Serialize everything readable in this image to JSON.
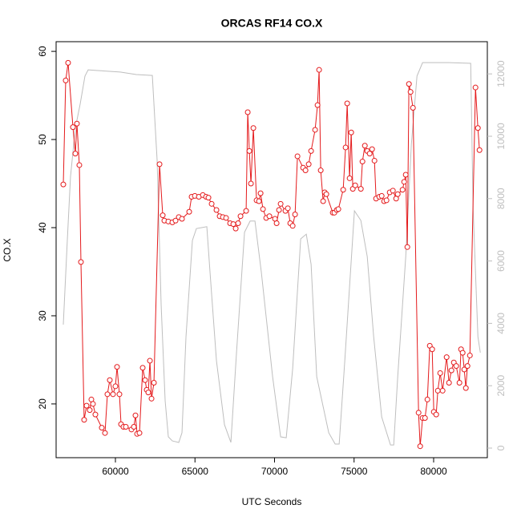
{
  "chart_data": {
    "type": "line",
    "title": "ORCAS RF14 CO.X",
    "x_label": "UTC Seconds",
    "y_label": "CO.X",
    "xlim": [
      56272,
      83375
    ],
    "xticks": [
      60000,
      65000,
      70000,
      75000,
      80000
    ],
    "ylim": [
      13.9,
      61.1
    ],
    "yticks": [
      20,
      30,
      40,
      50,
      60
    ],
    "y2lim": [
      -308,
      13033
    ],
    "y2ticks": [
      0,
      2000,
      4000,
      6000,
      8000,
      10000,
      12000
    ],
    "series": [
      {
        "color": "#e41a1c",
        "axis": "y",
        "markers": true,
        "x": [
          56724,
          56875,
          57026,
          57330,
          57480,
          57581,
          57732,
          57833,
          58034,
          58186,
          58387,
          58488,
          58589,
          58740,
          59143,
          59345,
          59496,
          59647,
          59849,
          60000,
          60101,
          60252,
          60353,
          60504,
          60655,
          61008,
          61159,
          61260,
          61361,
          61512,
          61714,
          61865,
          61966,
          62067,
          62168,
          62269,
          62420,
          62772,
          62974,
          63075,
          63326,
          63578,
          63780,
          63982,
          64183,
          64637,
          64788,
          64990,
          65242,
          65494,
          65695,
          65846,
          66048,
          66350,
          66552,
          66754,
          66955,
          67207,
          67409,
          67560,
          67711,
          67862,
          68215,
          68316,
          68417,
          68518,
          68669,
          68870,
          69022,
          69123,
          69274,
          69476,
          69677,
          70030,
          70131,
          70282,
          70383,
          70686,
          70837,
          70988,
          71140,
          71291,
          71442,
          71795,
          71946,
          72147,
          72298,
          72550,
          72702,
          72802,
          72903,
          73054,
          73155,
          73256,
          73659,
          73760,
          73911,
          74012,
          74315,
          74466,
          74567,
          74718,
          74819,
          74920,
          75072,
          75425,
          75526,
          75677,
          75828,
          75979,
          76130,
          76281,
          76382,
          76584,
          76735,
          76886,
          77037,
          77239,
          77440,
          77642,
          77743,
          78045,
          78146,
          78246,
          78347,
          78448,
          78549,
          78700,
          79053,
          79154,
          79305,
          79456,
          79607,
          79758,
          79909,
          80010,
          80161,
          80262,
          80413,
          80564,
          80816,
          80967,
          81118,
          81269,
          81420,
          81622,
          81722,
          81823,
          81924,
          82025,
          82126,
          82278,
          82630,
          82781,
          82882
        ],
        "values": [
          44.9,
          56.7,
          58.7,
          51.4,
          48.4,
          51.8,
          47.1,
          36.1,
          18.2,
          19.8,
          19.3,
          20.5,
          20.0,
          18.8,
          17.3,
          16.7,
          21.1,
          22.7,
          21.1,
          22.0,
          24.2,
          21.1,
          17.7,
          17.4,
          17.4,
          17.1,
          17.4,
          18.7,
          16.6,
          16.7,
          24.1,
          22.7,
          21.6,
          21.3,
          24.9,
          20.6,
          22.4,
          47.2,
          41.4,
          40.8,
          40.7,
          40.6,
          40.8,
          41.2,
          41.0,
          41.8,
          43.5,
          43.6,
          43.5,
          43.7,
          43.5,
          43.4,
          42.7,
          42.0,
          41.3,
          41.2,
          41.1,
          40.5,
          40.4,
          39.9,
          40.5,
          41.3,
          41.9,
          53.1,
          48.7,
          45.0,
          51.3,
          43.1,
          43.0,
          43.9,
          42.1,
          41.1,
          41.3,
          41.0,
          40.5,
          42.0,
          42.7,
          41.9,
          42.2,
          40.5,
          40.2,
          41.5,
          48.1,
          46.8,
          46.5,
          47.2,
          48.7,
          51.1,
          53.9,
          57.9,
          46.5,
          43.0,
          44.0,
          43.8,
          41.7,
          41.7,
          42.0,
          42.1,
          44.3,
          49.1,
          54.1,
          45.6,
          50.8,
          44.4,
          44.8,
          44.4,
          47.5,
          49.3,
          48.7,
          48.4,
          48.9,
          47.6,
          43.3,
          43.5,
          43.6,
          43.0,
          43.1,
          44.0,
          44.2,
          43.3,
          43.8,
          44.3,
          45.2,
          46.0,
          37.8,
          56.3,
          55.4,
          53.6,
          19.0,
          15.2,
          18.4,
          18.4,
          20.5,
          26.6,
          26.2,
          19.1,
          18.8,
          21.5,
          23.5,
          21.5,
          25.3,
          22.4,
          23.8,
          24.7,
          24.3,
          22.4,
          26.2,
          25.8,
          23.9,
          21.8,
          24.3,
          25.5,
          55.9,
          51.3,
          48.8
        ]
      },
      {
        "color": "#bebebe",
        "axis": "y2",
        "markers": false,
        "x": [
          56724,
          56976,
          57178,
          57480,
          57783,
          58085,
          58287,
          58790,
          60302,
          61310,
          62319,
          62621,
          62873,
          63125,
          63326,
          63578,
          63982,
          64183,
          64435,
          64838,
          65090,
          65745,
          65947,
          66350,
          66854,
          67257,
          67610,
          68114,
          68467,
          68770,
          69173,
          69879,
          70383,
          70736,
          71140,
          71644,
          71997,
          72299,
          72652,
          73408,
          73811,
          74063,
          74416,
          75022,
          75425,
          75828,
          76231,
          76735,
          77289,
          77491,
          77743,
          78247,
          78600,
          78953,
          79305,
          80968,
          82329,
          82480,
          82783,
          82934
        ],
        "values": [
          3960,
          6660,
          8710,
          10260,
          11030,
          11930,
          12130,
          12110,
          12060,
          11980,
          11950,
          9230,
          4600,
          1520,
          360,
          230,
          180,
          490,
          3570,
          6660,
          7040,
          7100,
          5630,
          2800,
          750,
          180,
          3060,
          6920,
          7280,
          7280,
          5630,
          2290,
          360,
          330,
          2550,
          6710,
          6860,
          5890,
          2290,
          490,
          130,
          130,
          2800,
          7610,
          7300,
          6140,
          3570,
          1000,
          100,
          100,
          2290,
          6140,
          9740,
          11930,
          12360,
          12360,
          12340,
          7690,
          3570,
          3060
        ]
      }
    ]
  }
}
